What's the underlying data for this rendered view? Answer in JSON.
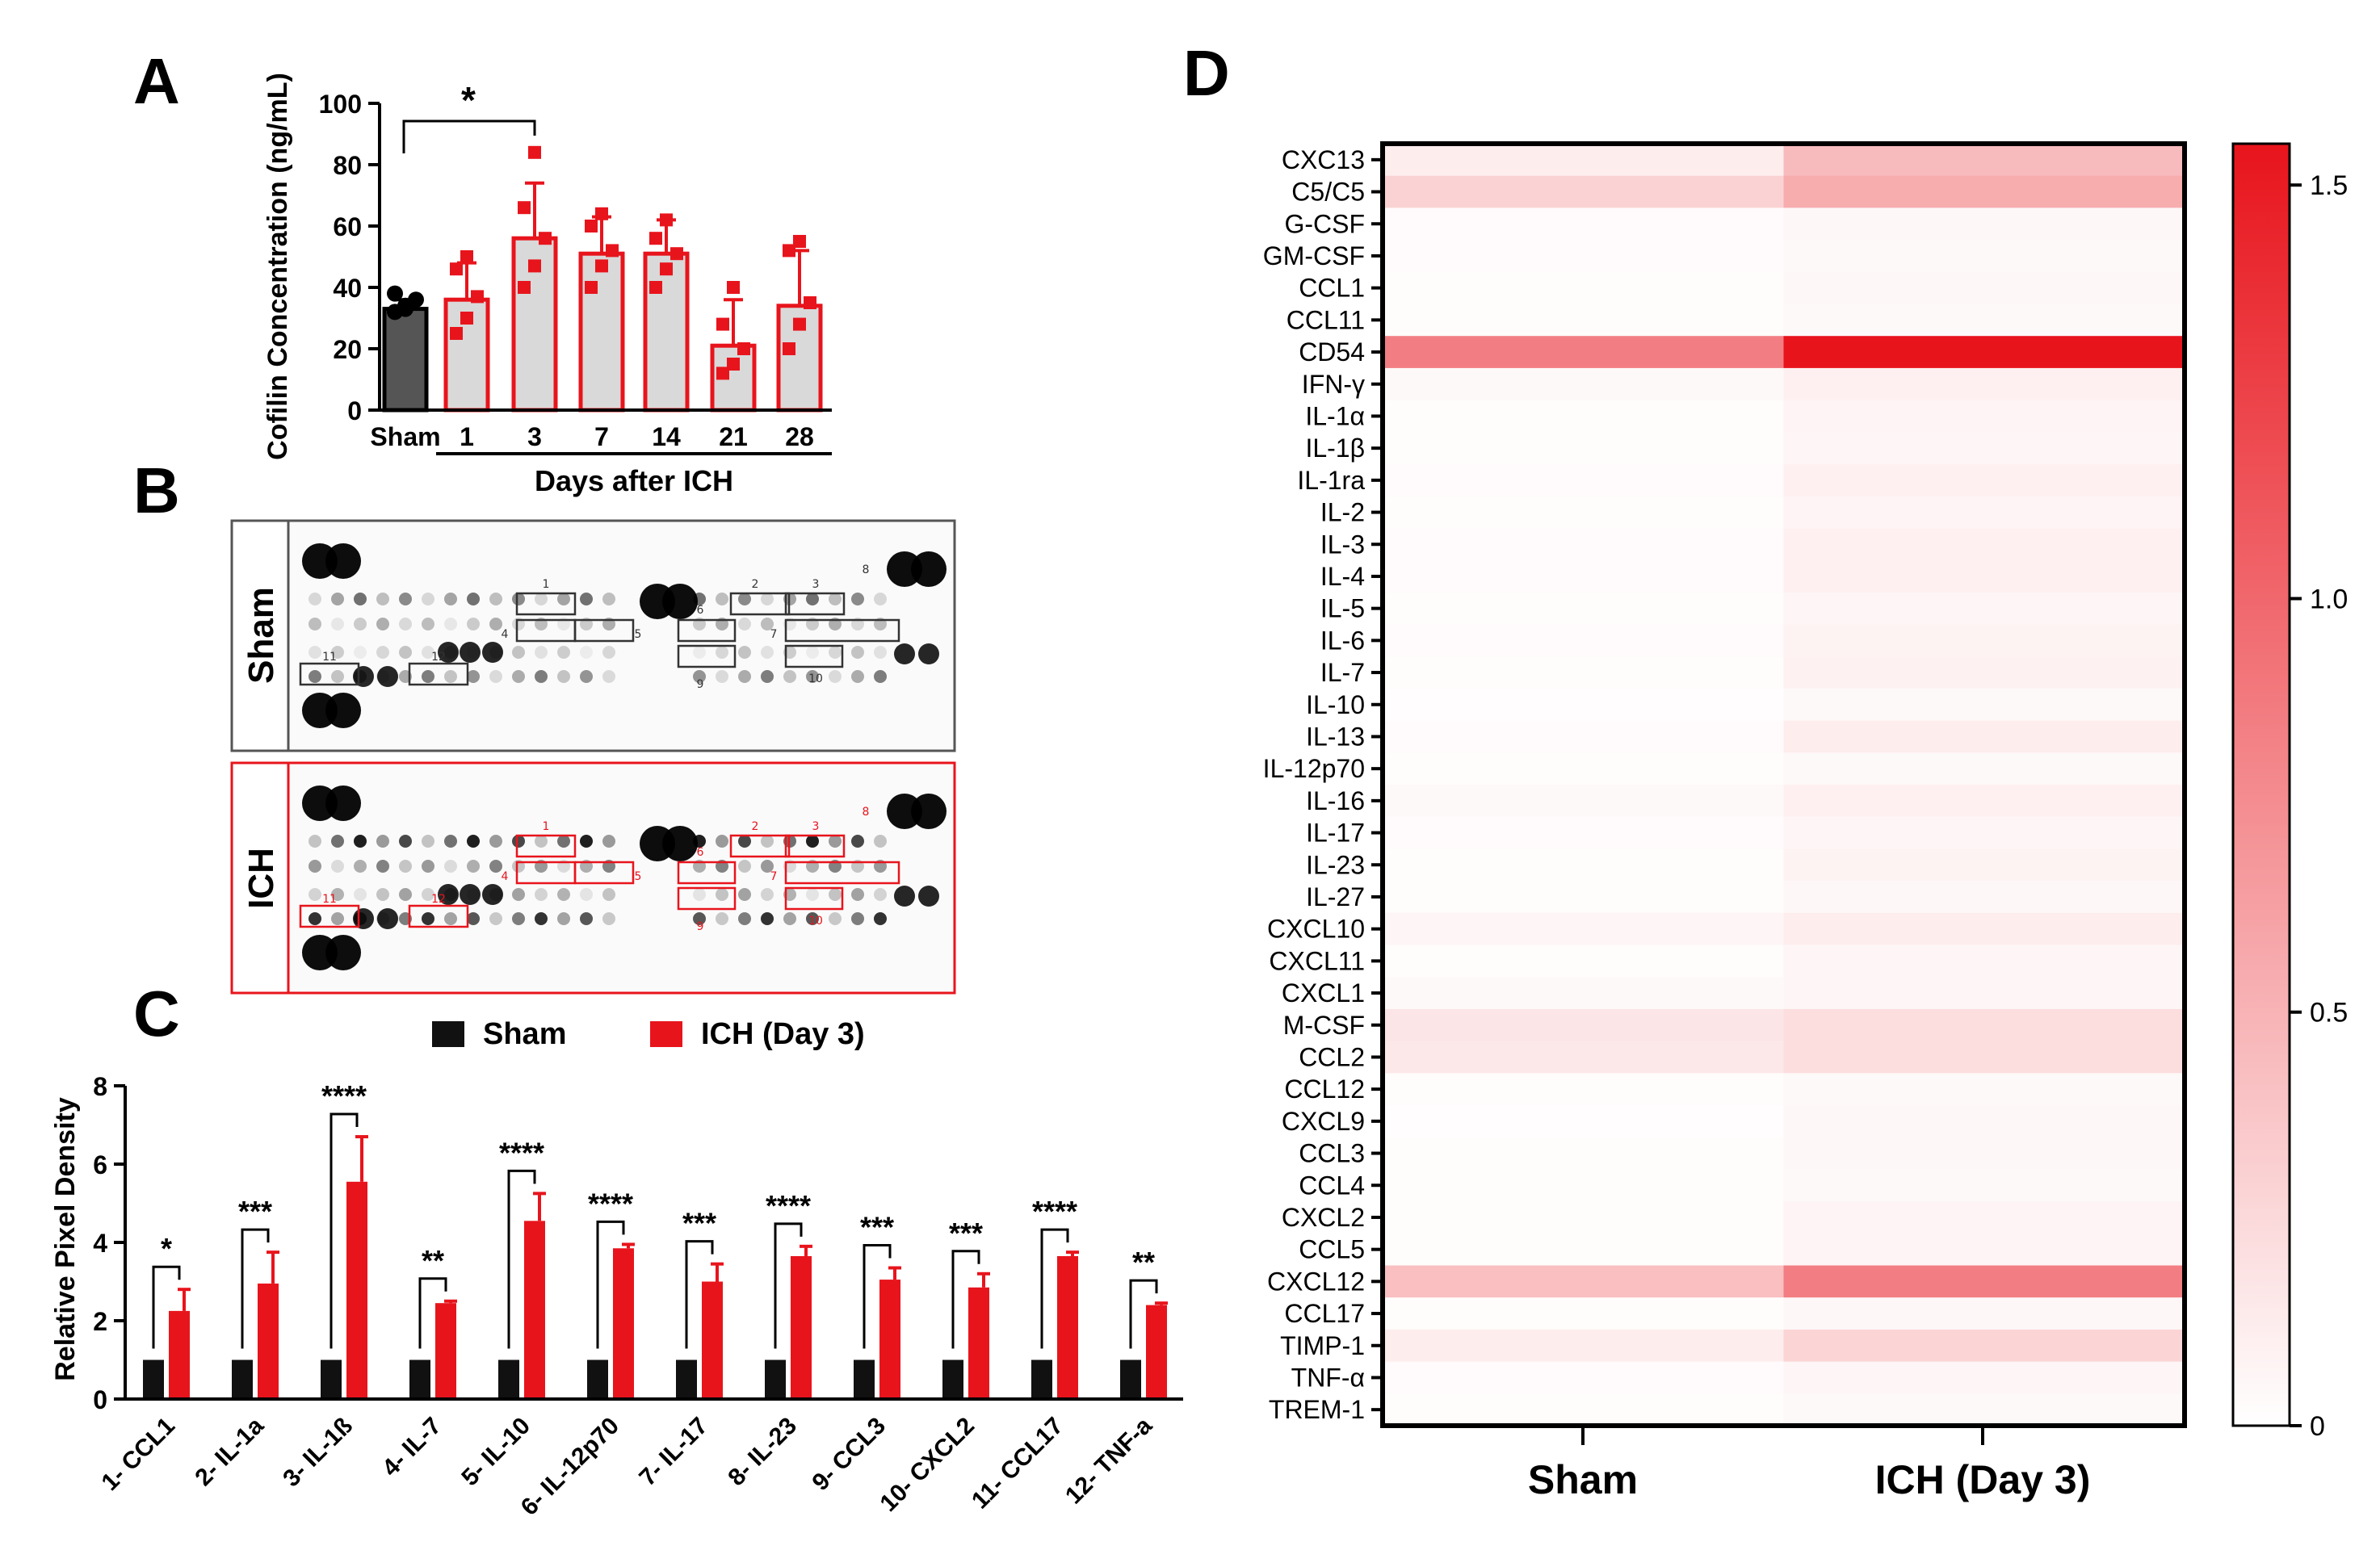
{
  "panel_labels": {
    "a": "A",
    "b": "B",
    "c": "C",
    "d": "D"
  },
  "colors": {
    "red": "#e8141c",
    "black": "#111111",
    "grey": "#d9d9d9",
    "sham_dark": "#555555"
  },
  "chart_data": [
    {
      "id": "A",
      "type": "bar",
      "title": "",
      "ylabel": "Cofilin Concentration (ng/mL)",
      "xlabel": "Days after ICH",
      "categories": [
        "Sham",
        "1",
        "3",
        "7",
        "14",
        "21",
        "28"
      ],
      "values": [
        33,
        36,
        56,
        51,
        51,
        21,
        34
      ],
      "errors": [
        3,
        12,
        18,
        12,
        11,
        15,
        18
      ],
      "points": [
        [
          32,
          34,
          36,
          38,
          33
        ],
        [
          25,
          30,
          37,
          46,
          50
        ],
        [
          40,
          47,
          56,
          66,
          84
        ],
        [
          40,
          47,
          52,
          60,
          64
        ],
        [
          40,
          46,
          51,
          56,
          62
        ],
        [
          12,
          15,
          20,
          28,
          40
        ],
        [
          20,
          28,
          35,
          52,
          55
        ]
      ],
      "yticks": [
        "0",
        "20",
        "40",
        "60",
        "80",
        "100"
      ],
      "ylim": [
        0,
        100
      ],
      "significance": {
        "from": "Sham",
        "to": "3",
        "label": "*"
      }
    },
    {
      "id": "C",
      "type": "bar",
      "ylabel": "Relative Pixel Density",
      "categories": [
        "1- CCL1",
        "2- IL-1a",
        "3- IL-1ß",
        "4- IL-7",
        "5- IL-10",
        "6- IL-12p70",
        "7- IL-17",
        "8- IL-23",
        "9- CCL3",
        "10- CXCL2",
        "11- CCL17",
        "12- TNF-a"
      ],
      "series": [
        {
          "name": "Sham",
          "values": [
            1,
            1,
            1,
            1,
            1,
            1,
            1,
            1,
            1,
            1,
            1,
            1
          ],
          "errors": [
            0,
            0,
            0,
            0,
            0,
            0,
            0,
            0,
            0,
            0,
            0,
            0
          ]
        },
        {
          "name": "ICH (Day 3)",
          "values": [
            2.25,
            2.95,
            5.55,
            2.45,
            4.55,
            3.85,
            3.0,
            3.65,
            3.05,
            2.85,
            3.65,
            2.4
          ],
          "errors": [
            0.55,
            0.8,
            1.15,
            0.05,
            0.7,
            0.1,
            0.45,
            0.25,
            0.3,
            0.35,
            0.1,
            0.05
          ]
        }
      ],
      "significance": [
        "*",
        "***",
        "****",
        "**",
        "****",
        "****",
        "***",
        "****",
        "***",
        "***",
        "****",
        "**"
      ],
      "yticks": [
        "0",
        "2",
        "4",
        "6",
        "8"
      ],
      "ylim": [
        0,
        8
      ],
      "legend": [
        "Sham",
        "ICH (Day 3)"
      ]
    },
    {
      "id": "D",
      "type": "heatmap",
      "columns": [
        "Sham",
        "ICH (Day 3)"
      ],
      "rows": [
        "CXC13",
        "C5/C5",
        "G-CSF",
        "GM-CSF",
        "CCL1",
        "CCL11",
        "CD54",
        "IFN-γ",
        "IL-1α",
        "IL-1β",
        "IL-1ra",
        "IL-2",
        "IL-3",
        "IL-4",
        "IL-5",
        "IL-6",
        "IL-7",
        "IL-10",
        "IL-13",
        "IL-12p70",
        "IL-16",
        "IL-17",
        "IL-23",
        "IL-27",
        "CXCL10",
        "CXCL11",
        "CXCL1",
        "M-CSF",
        "CCL2",
        "CCL12",
        "CXCL9",
        "CCL3",
        "CCL4",
        "CXCL2",
        "CCL5",
        "CXCL12",
        "CCL17",
        "TIMP-1",
        "TNF-α",
        "TREM-1"
      ],
      "values": [
        [
          0.12,
          0.45
        ],
        [
          0.3,
          0.55
        ],
        [
          0.03,
          0.05
        ],
        [
          0.03,
          0.04
        ],
        [
          0.02,
          0.05
        ],
        [
          0.02,
          0.04
        ],
        [
          0.85,
          1.55
        ],
        [
          0.04,
          0.1
        ],
        [
          0.02,
          0.07
        ],
        [
          0.02,
          0.06
        ],
        [
          0.03,
          0.1
        ],
        [
          0.02,
          0.07
        ],
        [
          0.03,
          0.1
        ],
        [
          0.03,
          0.1
        ],
        [
          0.02,
          0.06
        ],
        [
          0.03,
          0.08
        ],
        [
          0.02,
          0.09
        ],
        [
          0.01,
          0.04
        ],
        [
          0.03,
          0.12
        ],
        [
          0.02,
          0.04
        ],
        [
          0.04,
          0.1
        ],
        [
          0.03,
          0.06
        ],
        [
          0.02,
          0.08
        ],
        [
          0.02,
          0.05
        ],
        [
          0.06,
          0.12
        ],
        [
          0.02,
          0.06
        ],
        [
          0.04,
          0.06
        ],
        [
          0.17,
          0.22
        ],
        [
          0.15,
          0.22
        ],
        [
          0.02,
          0.04
        ],
        [
          0.01,
          0.05
        ],
        [
          0.02,
          0.05
        ],
        [
          0.02,
          0.04
        ],
        [
          0.02,
          0.07
        ],
        [
          0.02,
          0.07
        ],
        [
          0.42,
          0.85
        ],
        [
          0.02,
          0.05
        ],
        [
          0.12,
          0.28
        ],
        [
          0.03,
          0.06
        ],
        [
          0.02,
          0.04
        ]
      ],
      "colorbar": {
        "min": 0,
        "max": 1.55,
        "ticks": [
          "0",
          "0.5",
          "1.0",
          "1.5"
        ]
      }
    }
  ],
  "blot": {
    "rows": [
      "Sham",
      "ICH"
    ],
    "box_labels": [
      "1",
      "2",
      "3",
      "4",
      "5",
      "6",
      "7",
      "8",
      "9",
      "10",
      "11",
      "12"
    ]
  }
}
